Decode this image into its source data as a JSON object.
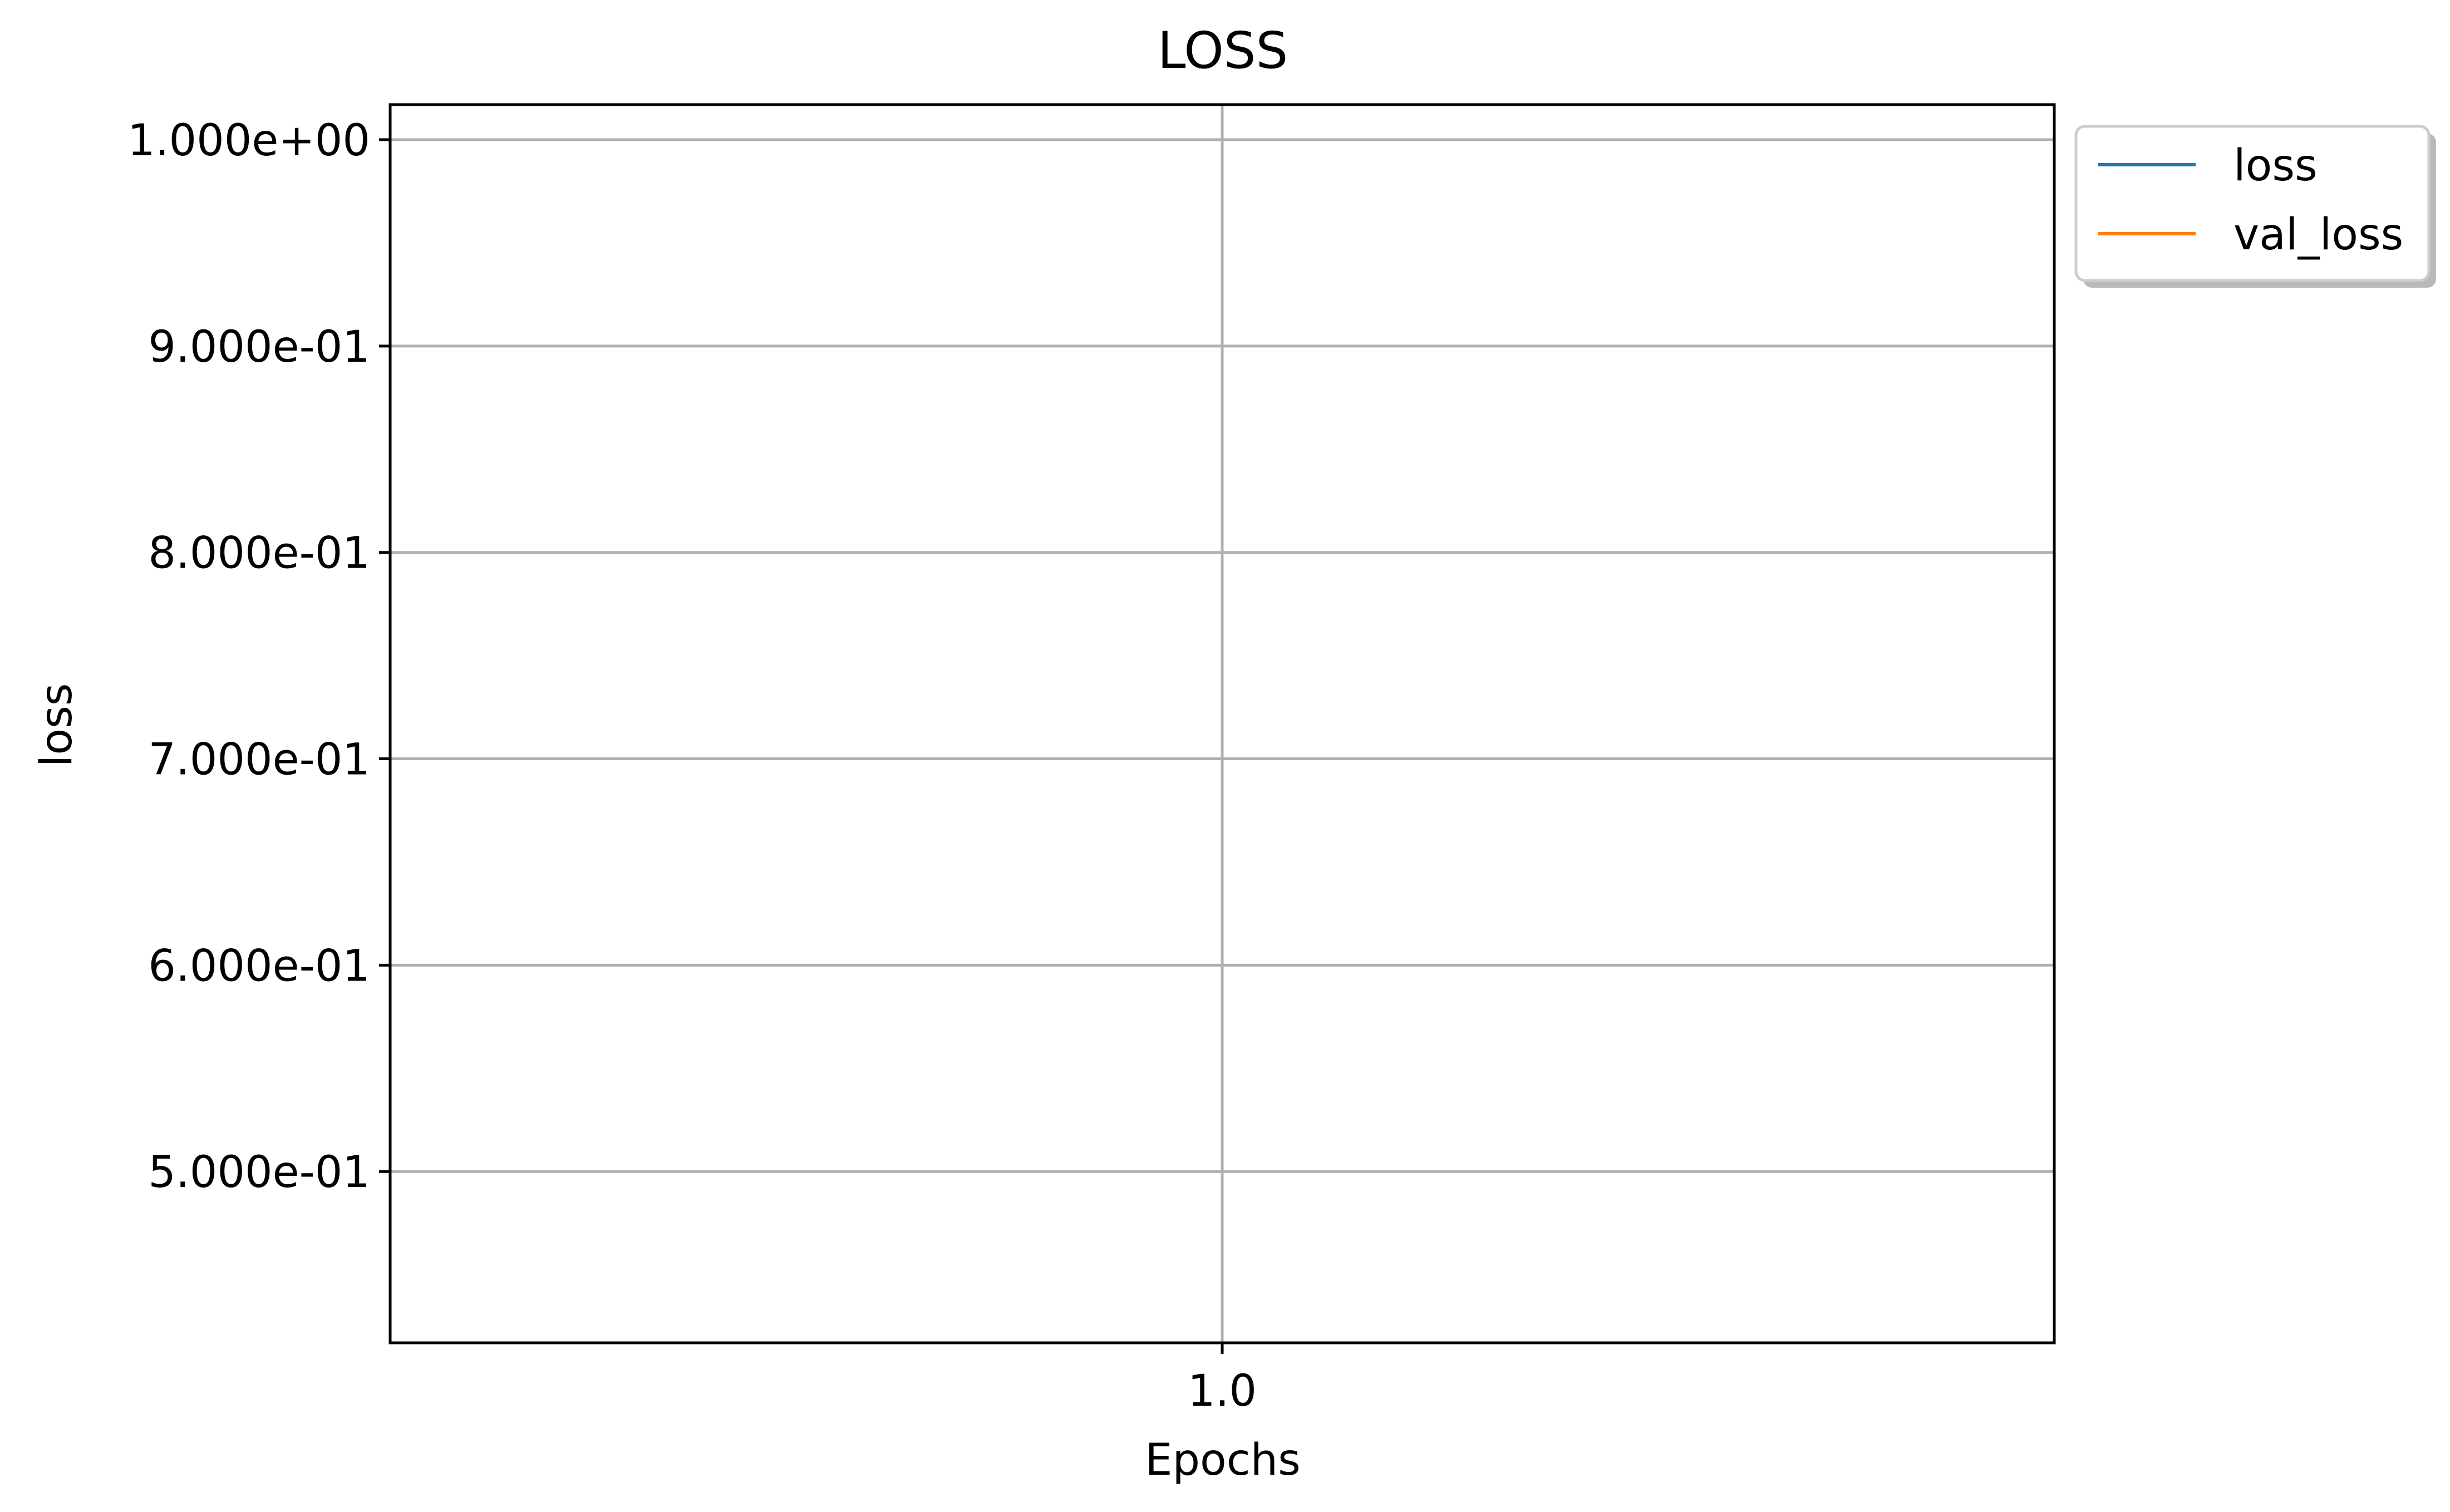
{
  "chart_data": {
    "type": "line",
    "title": "LOSS",
    "xlabel": "Epochs",
    "ylabel": "loss",
    "x_ticks": [
      1.0
    ],
    "x_tick_labels": [
      "1.0"
    ],
    "y_ticks": [
      1.0,
      0.9,
      0.8,
      0.7,
      0.6,
      0.5
    ],
    "y_tick_labels": [
      "1.000e+00",
      "9.000e-01",
      "8.000e-01",
      "7.000e-01",
      "6.000e-01",
      "5.000e-01"
    ],
    "xlim": [
      0.96,
      1.04
    ],
    "ylim": [
      0.417,
      1.017
    ],
    "grid": true,
    "legend_placement": "outside top-right",
    "series": [
      {
        "name": "loss",
        "color": "#1f77b4",
        "x": [],
        "y": []
      },
      {
        "name": "val_loss",
        "color": "#ff7f0e",
        "x": [],
        "y": []
      }
    ]
  }
}
